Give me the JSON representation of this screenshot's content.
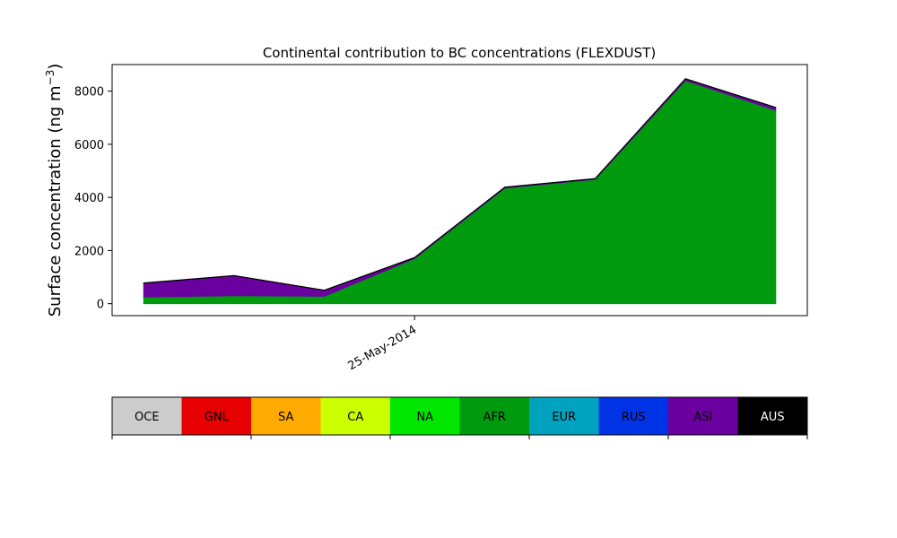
{
  "chart_data": {
    "type": "area",
    "title": "Continental contribution to BC concentrations (FLEXDUST)",
    "xlabel": "",
    "ylabel_main": "Surface concentration (ng m",
    "ylabel_sup": "−3",
    "ylabel_close": ")",
    "stacked": true,
    "x": [
      0,
      1,
      2,
      3,
      4,
      5,
      6,
      7
    ],
    "x_ticks": [
      {
        "x": 3,
        "label": "25-May-2014"
      }
    ],
    "xlim": [
      -0.35,
      7.35
    ],
    "ylim": [
      -450,
      9000
    ],
    "y_ticks": [
      0,
      2000,
      4000,
      6000,
      8000
    ],
    "grid": false,
    "series": [
      {
        "name": "AFR",
        "color": "#009a0e",
        "values": [
          250,
          300,
          280,
          1700,
          4350,
          4680,
          8400,
          7280
        ]
      },
      {
        "name": "ASI",
        "color": "#6b00a0",
        "values": [
          520,
          750,
          220,
          30,
          30,
          20,
          60,
          100
        ]
      },
      {
        "name": "AUS",
        "color": "#000000",
        "values": [
          10,
          10,
          10,
          10,
          10,
          10,
          10,
          10
        ]
      }
    ]
  },
  "legend_bar": {
    "items": [
      {
        "name": "OCE",
        "color": "#cccccc",
        "text_color": "#000000"
      },
      {
        "name": "GNL",
        "color": "#e60000",
        "text_color": "#000000"
      },
      {
        "name": "SA",
        "color": "#ffaa00",
        "text_color": "#000000"
      },
      {
        "name": "CA",
        "color": "#ccff00",
        "text_color": "#000000"
      },
      {
        "name": "NA",
        "color": "#00e600",
        "text_color": "#000000"
      },
      {
        "name": "AFR",
        "color": "#009a0e",
        "text_color": "#000000"
      },
      {
        "name": "EUR",
        "color": "#00a3bf",
        "text_color": "#000000"
      },
      {
        "name": "RUS",
        "color": "#0033e6",
        "text_color": "#000000"
      },
      {
        "name": "ASI",
        "color": "#6b00a0",
        "text_color": "#000000"
      },
      {
        "name": "AUS",
        "color": "#000000",
        "text_color": "#ffffff"
      }
    ]
  }
}
